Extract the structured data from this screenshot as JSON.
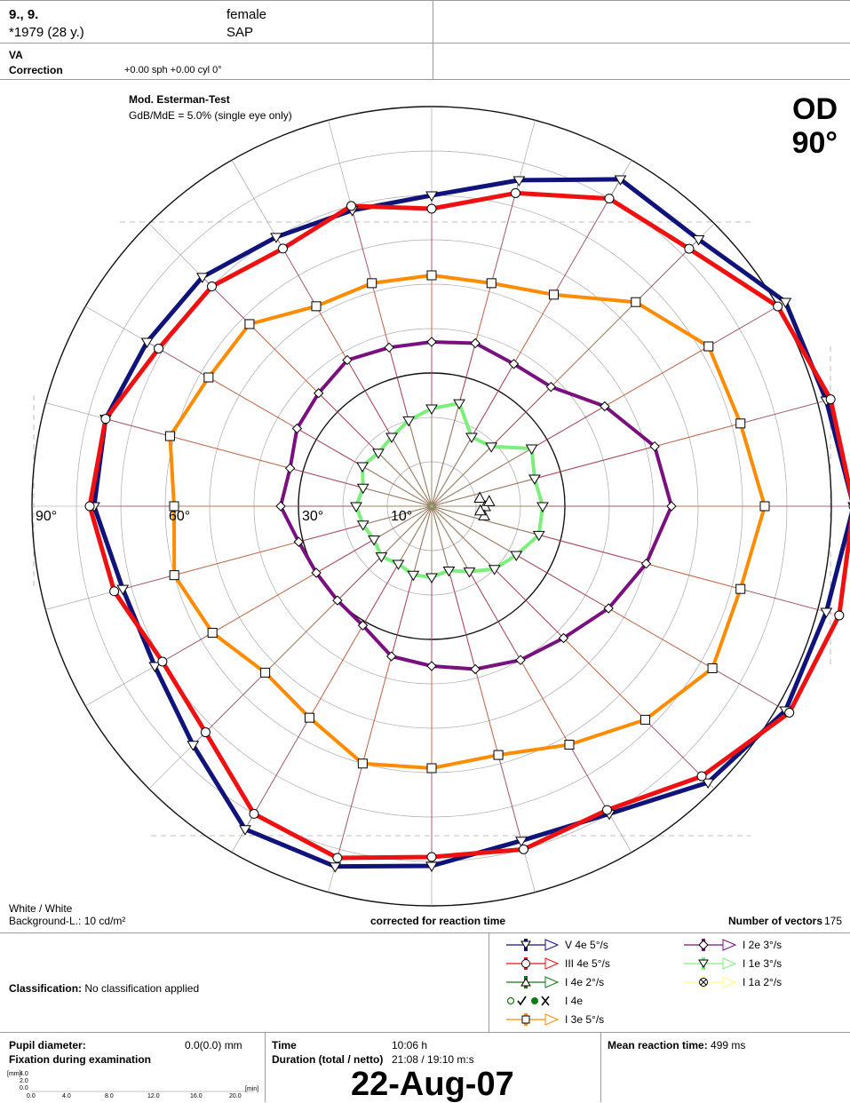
{
  "patient": {
    "name": "9., 9.",
    "sex": "female",
    "birth": "*1979 (28 y.)",
    "program": "SAP",
    "va_label": "VA",
    "correction_label": "Correction",
    "correction_value": "+0.00 sph +0.00 cyl 0°"
  },
  "test": {
    "name": "Mod. Esterman-Test",
    "gdb": "GdB/MdE = 5.0% (single eye only)",
    "eye": "OD",
    "range": "90°"
  },
  "footer": {
    "stimulus": "White / White",
    "background": "Background-L.: 10 cd/m²",
    "corrected": "corrected for reaction time",
    "vectors_label": "Number of vectors",
    "vectors_value": "175",
    "classification_label": "Classification:",
    "classification_value": "No classification applied",
    "pupil_label": "Pupil diameter:",
    "pupil_value": "0.0(0.0) mm",
    "fixation_label": "Fixation during examination",
    "time_label": "Time",
    "time_value": "10:06 h",
    "duration_label": "Duration (total / netto)",
    "duration_value": "21:08 / 19:10 m:s",
    "mean_rt_label": "Mean reaction time:",
    "mean_rt_value": "499 ms",
    "date": "22-Aug-07",
    "fix_y_unit": "[mm]",
    "fix_y_ticks": [
      "4.0",
      "2.0",
      "0.0"
    ],
    "fix_x_ticks": [
      "0.0",
      "4.0",
      "8.0",
      "12.0",
      "16.0",
      "20.0"
    ],
    "fix_x_unit": "[min]"
  },
  "legend": [
    {
      "marker": "triangle-down",
      "color": "#10137a",
      "label": "V 4e   5°/s"
    },
    {
      "marker": "circle",
      "color": "#ee1111",
      "label": "III 4e   5°/s"
    },
    {
      "marker": "triangle-up",
      "color": "#117a11",
      "label": "I 4e   2°/s"
    },
    {
      "marker": "fixation",
      "color": "#117a11",
      "label": "I 4e"
    },
    {
      "marker": "square",
      "color": "#ff8c00",
      "label": "I 3e   5°/s"
    },
    {
      "marker": "diamond",
      "color": "#7a1080",
      "label": "I 2e   3°/s"
    },
    {
      "marker": "triangle-down",
      "color": "#7cee7c",
      "label": "I 1e   3°/s"
    },
    {
      "marker": "crossed-circle",
      "color": "#ffff80",
      "label": "I 1a   2°/s"
    }
  ],
  "chart_data": {
    "type": "kinetic-perimetry",
    "eye": "OD",
    "max_eccentricity_deg": 90,
    "ring_labels": [
      "10°",
      "30°",
      "60°",
      "90°"
    ],
    "rings_deg": [
      10,
      20,
      30,
      40,
      50,
      60,
      70,
      80,
      90
    ],
    "meridians_deg": [
      0,
      15,
      30,
      45,
      60,
      75,
      90,
      105,
      120,
      135,
      150,
      165,
      180,
      195,
      210,
      225,
      240,
      255,
      270,
      285,
      300,
      315,
      330,
      345
    ],
    "isopters": [
      {
        "name": "V 4e",
        "color": "#10137a",
        "marker": "triangle-down",
        "points_deg": [
          [
            0,
            95
          ],
          [
            15,
            92
          ],
          [
            30,
            92
          ],
          [
            45,
            85
          ],
          [
            60,
            85
          ],
          [
            75,
            76
          ],
          [
            90,
            70
          ],
          [
            105,
            69
          ],
          [
            120,
            70
          ],
          [
            135,
            73
          ],
          [
            150,
            74
          ],
          [
            165,
            76
          ],
          [
            180,
            76
          ],
          [
            195,
            72
          ],
          [
            210,
            72
          ],
          [
            225,
            76
          ],
          [
            240,
            84
          ],
          [
            255,
            84
          ],
          [
            270,
            81
          ],
          [
            285,
            78
          ],
          [
            300,
            80
          ],
          [
            315,
            88
          ],
          [
            330,
            92
          ],
          [
            345,
            92
          ]
        ]
      },
      {
        "name": "III 4e",
        "color": "#ee1111",
        "marker": "circle",
        "points_deg": [
          [
            0,
            95
          ],
          [
            15,
            93
          ],
          [
            30,
            90
          ],
          [
            45,
            82
          ],
          [
            60,
            80
          ],
          [
            75,
            73
          ],
          [
            90,
            67
          ],
          [
            105,
            70
          ],
          [
            120,
            67
          ],
          [
            135,
            70
          ],
          [
            150,
            71
          ],
          [
            165,
            76
          ],
          [
            180,
            77
          ],
          [
            195,
            74
          ],
          [
            210,
            70
          ],
          [
            225,
            72
          ],
          [
            240,
            80
          ],
          [
            255,
            82
          ],
          [
            270,
            79
          ],
          [
            285,
            80
          ],
          [
            300,
            79
          ],
          [
            315,
            86
          ],
          [
            330,
            93
          ],
          [
            345,
            95
          ]
        ]
      },
      {
        "name": "I 3e",
        "color": "#ff8c00",
        "marker": "square",
        "points_deg": [
          [
            0,
            75
          ],
          [
            15,
            72
          ],
          [
            30,
            72
          ],
          [
            45,
            65
          ],
          [
            60,
            55
          ],
          [
            75,
            52
          ],
          [
            90,
            52
          ],
          [
            105,
            52
          ],
          [
            120,
            52
          ],
          [
            135,
            58
          ],
          [
            150,
            58
          ],
          [
            165,
            61
          ],
          [
            180,
            58
          ],
          [
            195,
            60
          ],
          [
            210,
            57
          ],
          [
            225,
            53
          ],
          [
            240,
            55
          ],
          [
            255,
            60
          ],
          [
            270,
            59
          ],
          [
            285,
            58
          ],
          [
            300,
            62
          ],
          [
            315,
            68
          ],
          [
            330,
            73
          ],
          [
            345,
            72
          ]
        ]
      },
      {
        "name": "I 2e",
        "color": "#7a1080",
        "marker": "diamond",
        "points_deg": [
          [
            0,
            54
          ],
          [
            15,
            52
          ],
          [
            30,
            45
          ],
          [
            45,
            38
          ],
          [
            60,
            37
          ],
          [
            75,
            38
          ],
          [
            90,
            37
          ],
          [
            105,
            37
          ],
          [
            120,
            38
          ],
          [
            135,
            36
          ],
          [
            150,
            35
          ],
          [
            165,
            33
          ],
          [
            180,
            34
          ],
          [
            195,
            31
          ],
          [
            210,
            30
          ],
          [
            225,
            30
          ],
          [
            240,
            31
          ],
          [
            255,
            35
          ],
          [
            270,
            36
          ],
          [
            285,
            38
          ],
          [
            300,
            40
          ],
          [
            315,
            42
          ],
          [
            330,
            46
          ],
          [
            345,
            50
          ]
        ]
      },
      {
        "name": "I 1e",
        "color": "#7cee7c",
        "marker": "triangle-down",
        "points_deg": [
          [
            0,
            25
          ],
          [
            15,
            24
          ],
          [
            30,
            26
          ],
          [
            45,
            19
          ],
          [
            60,
            18
          ],
          [
            75,
            24
          ],
          [
            90,
            22
          ],
          [
            105,
            20
          ],
          [
            120,
            18
          ],
          [
            135,
            17
          ],
          [
            150,
            18
          ],
          [
            165,
            16
          ],
          [
            180,
            17
          ],
          [
            195,
            16
          ],
          [
            210,
            15
          ],
          [
            225,
            16
          ],
          [
            240,
            15
          ],
          [
            255,
            16
          ],
          [
            270,
            16
          ],
          [
            285,
            15
          ],
          [
            300,
            17
          ],
          [
            315,
            20
          ],
          [
            330,
            22
          ],
          [
            345,
            25
          ]
        ]
      }
    ],
    "blind_spot_deg": [
      [
        0,
        12
      ],
      [
        10,
        11
      ],
      [
        -10,
        12
      ],
      [
        5,
        13
      ],
      [
        -5,
        11
      ]
    ]
  }
}
